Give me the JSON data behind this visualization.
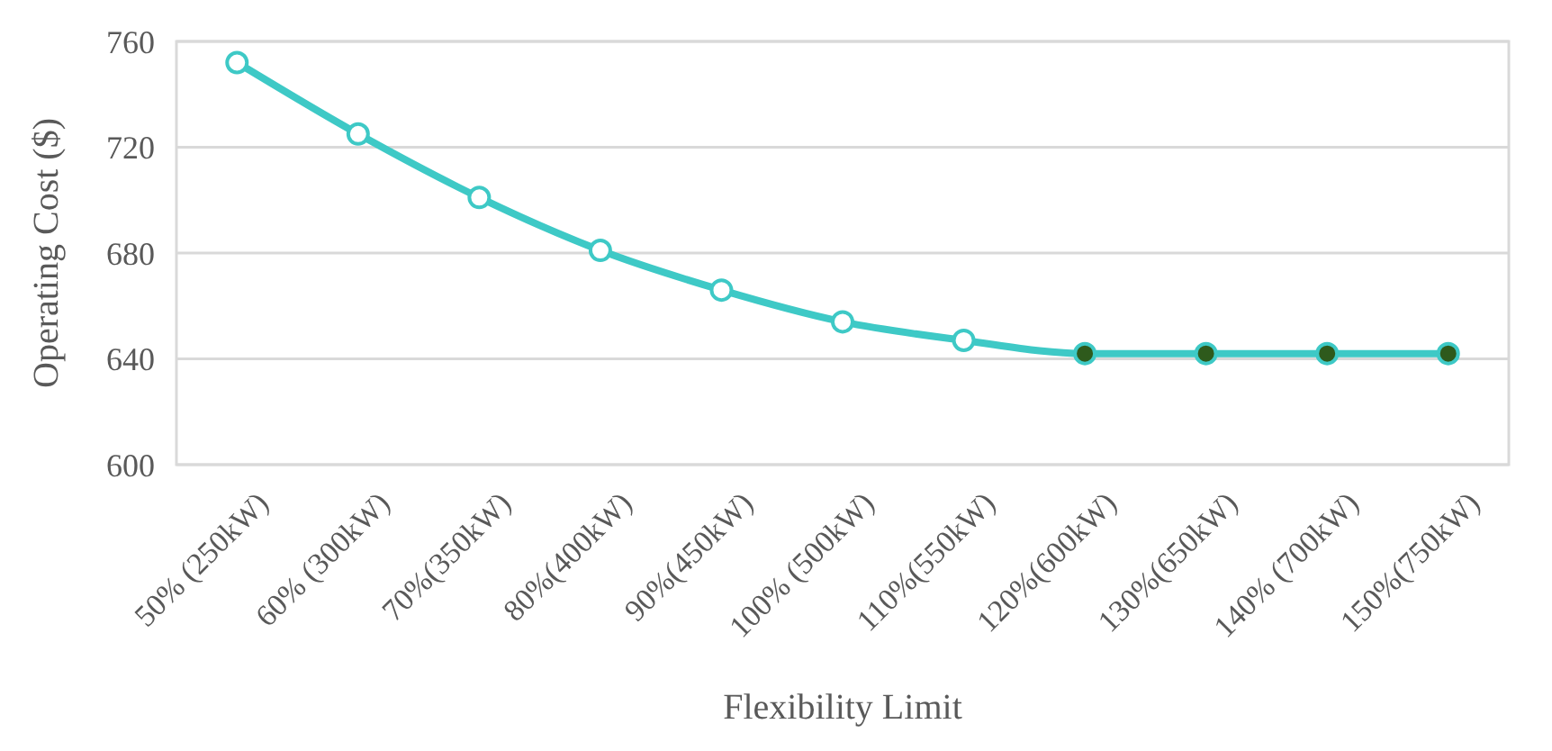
{
  "chart_data": {
    "type": "line",
    "xlabel": "Flexibility Limit",
    "ylabel": "Operating Cost ($)",
    "categories": [
      "50% (250kW)",
      "60% (300kW)",
      "70%(350kW)",
      "80%(400kW)",
      "90%(450kW)",
      "100% (500kW)",
      "110%(550kW)",
      "120%(600kW)",
      "130%(650kW)",
      "140% (700kW)",
      "150%(750kW)"
    ],
    "series": [
      {
        "color": "#3ec9c6",
        "values": [
          752,
          725,
          701,
          681,
          666,
          654,
          647,
          642,
          642,
          642,
          642
        ],
        "colors": [
          "#ffffff",
          "#ffffff",
          "#ffffff",
          "#ffffff",
          "#ffffff",
          "#ffffff",
          "#ffffff",
          "#2e5a1c",
          "#2e5a1c",
          "#2e5a1c",
          "#2e5a1c"
        ]
      }
    ],
    "ylim": [
      600,
      760
    ],
    "yticks": [
      600,
      640,
      680,
      720,
      760
    ],
    "grid": "y",
    "marker": "circle",
    "line_style": "solid"
  }
}
